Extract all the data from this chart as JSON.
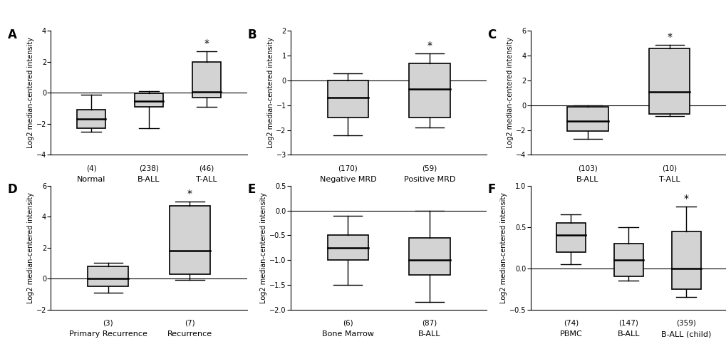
{
  "panels": {
    "A": {
      "label": "A",
      "ylabel": "Log2 median-centered intensity",
      "ylim": [
        -4,
        4
      ],
      "yticks": [
        -4,
        -2,
        0,
        2,
        4
      ],
      "hline": 0,
      "boxes": [
        {
          "label": "Normal",
          "n": "(4)",
          "q1": -2.3,
          "median": -1.7,
          "q3": -1.1,
          "whislo": -2.5,
          "whishi": -0.1,
          "star": false
        },
        {
          "label": "B-ALL",
          "n": "(238)",
          "q1": -0.9,
          "median": -0.55,
          "q3": -0.05,
          "whislo": -2.3,
          "whishi": 0.1,
          "star": false
        },
        {
          "label": "T-ALL",
          "n": "(46)",
          "q1": -0.3,
          "median": 0.05,
          "q3": 2.0,
          "whislo": -0.9,
          "whishi": 2.7,
          "star": true
        }
      ]
    },
    "B": {
      "label": "B",
      "ylabel": "Log2 median-centered intensity",
      "ylim": [
        -3,
        2
      ],
      "yticks": [
        -3,
        -2,
        -1,
        0,
        1,
        2
      ],
      "hline": 0,
      "boxes": [
        {
          "label": "Negative MRD",
          "n": "(170)",
          "q1": -1.5,
          "median": -0.7,
          "q3": 0.0,
          "whislo": -2.2,
          "whishi": 0.3,
          "star": false
        },
        {
          "label": "Positive MRD",
          "n": "(59)",
          "q1": -1.5,
          "median": -0.35,
          "q3": 0.7,
          "whislo": -1.9,
          "whishi": 1.1,
          "star": true
        }
      ]
    },
    "C": {
      "label": "C",
      "ylabel": "Log2 median-centered intensity",
      "ylim": [
        -4,
        6
      ],
      "yticks": [
        -4,
        -2,
        0,
        2,
        4,
        6
      ],
      "hline": 0,
      "boxes": [
        {
          "label": "B-ALL",
          "n": "(103)",
          "q1": -2.1,
          "median": -1.3,
          "q3": -0.1,
          "whislo": -2.7,
          "whishi": 0.0,
          "star": false
        },
        {
          "label": "T-ALL",
          "n": "(10)",
          "q1": -0.7,
          "median": 1.1,
          "q3": 4.6,
          "whislo": -0.9,
          "whishi": 4.9,
          "star": true
        }
      ]
    },
    "D": {
      "label": "D",
      "ylabel": "Log2 median-centered intensity",
      "ylim": [
        -2,
        6
      ],
      "yticks": [
        -2,
        0,
        2,
        4,
        6
      ],
      "hline": 0,
      "boxes": [
        {
          "label": "Primary Recurrence",
          "n": "(3)",
          "q1": -0.5,
          "median": 0.0,
          "q3": 0.8,
          "whislo": -0.9,
          "whishi": 1.0,
          "star": false
        },
        {
          "label": "Recurrence",
          "n": "(7)",
          "q1": 0.3,
          "median": 1.8,
          "q3": 4.7,
          "whislo": -0.1,
          "whishi": 5.0,
          "star": true
        }
      ]
    },
    "E": {
      "label": "E",
      "ylabel": "Log2 median-centered intensity",
      "ylim": [
        -2.0,
        0.5
      ],
      "yticks": [
        -2.0,
        -1.5,
        -1.0,
        -0.5,
        0.0,
        0.5
      ],
      "hline": 0,
      "boxes": [
        {
          "label": "Bone Marrow",
          "n": "(6)",
          "q1": -1.0,
          "median": -0.75,
          "q3": -0.5,
          "whislo": -1.5,
          "whishi": -0.1,
          "star": false
        },
        {
          "label": "B-ALL",
          "n": "(87)",
          "q1": -1.3,
          "median": -1.0,
          "q3": -0.55,
          "whislo": -1.85,
          "whishi": 0.0,
          "star": false
        }
      ]
    },
    "F": {
      "label": "F",
      "ylabel": "Log2 median-centered intensity",
      "ylim": [
        -0.5,
        1.0
      ],
      "yticks": [
        -0.5,
        0.0,
        0.5,
        1.0
      ],
      "hline": 0,
      "boxes": [
        {
          "label": "PBMC",
          "n": "(74)",
          "q1": 0.2,
          "median": 0.4,
          "q3": 0.55,
          "whislo": 0.05,
          "whishi": 0.65,
          "star": false
        },
        {
          "label": "B-ALL",
          "n": "(147)",
          "q1": -0.1,
          "median": 0.1,
          "q3": 0.3,
          "whislo": -0.15,
          "whishi": 0.5,
          "star": false
        },
        {
          "label": "B-ALL (child)",
          "n": "(359)",
          "q1": -0.25,
          "median": 0.0,
          "q3": 0.45,
          "whislo": -0.35,
          "whishi": 0.75,
          "star": true
        }
      ]
    }
  },
  "box_color": "#d3d3d3",
  "box_edgecolor": "#000000",
  "linecolor": "#000000",
  "star_color": "#000000",
  "hline_color": "#000000",
  "tick_fontsize": 7,
  "n_fontsize": 7.5,
  "category_fontsize": 8,
  "panel_label_fontsize": 12,
  "ylabel_fontsize": 7,
  "star_fontsize": 10
}
